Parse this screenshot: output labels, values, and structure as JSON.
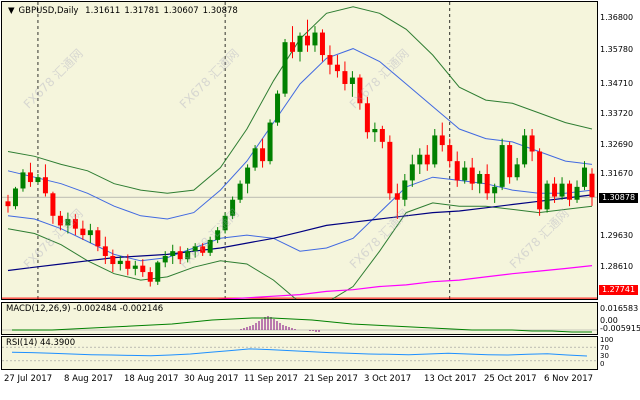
{
  "header": {
    "symbol": "GBPUSD,Daily",
    "open": "1.31611",
    "high": "1.31781",
    "low": "1.30607",
    "close": "1.30878"
  },
  "price_axis": {
    "ticks": [
      "1.36800",
      "1.35780",
      "1.34710",
      "1.33720",
      "1.32690",
      "1.31670",
      "1.29630",
      "1.28610",
      "1.27740"
    ],
    "current_price": "1.30878",
    "level_price": "1.27741"
  },
  "macd": {
    "label": "MACD(12,26,9) -0.002484 -0.002146",
    "ticks": [
      "0.016583",
      "0.00",
      "-0.005915"
    ]
  },
  "rsi": {
    "label": "RSI(14) 44.3900",
    "ticks": [
      "100",
      "70",
      "30",
      "0"
    ]
  },
  "date_axis": [
    "27 Jul 2017",
    "8 Aug 2017",
    "18 Aug 2017",
    "30 Aug 2017",
    "11 Sep 2017",
    "21 Sep 2017",
    "3 Oct 2017",
    "13 Oct 2017",
    "25 Oct 2017",
    "6 Nov 2017"
  ],
  "watermark": "FX678 汇通网",
  "colors": {
    "background": "#f5f5dc",
    "bull_candle": "#008000",
    "bear_candle": "#ff0000",
    "bollinger_outer": "#2e7d32",
    "bollinger_inner": "#4169e1",
    "ma_long": "#ff00ff",
    "ma_mid": "#000080",
    "level_line": "#ff0000"
  },
  "chart_data": {
    "type": "candlestick",
    "title": "GBPUSD,Daily",
    "ylim": [
      1.2765,
      1.3695
    ],
    "candles": [
      {
        "o": 1.3075,
        "h": 1.3095,
        "l": 1.304,
        "c": 1.306
      },
      {
        "o": 1.306,
        "h": 1.312,
        "l": 1.305,
        "c": 1.3115
      },
      {
        "o": 1.3115,
        "h": 1.3175,
        "l": 1.3105,
        "c": 1.3165
      },
      {
        "o": 1.3165,
        "h": 1.3195,
        "l": 1.312,
        "c": 1.3135
      },
      {
        "o": 1.3135,
        "h": 1.316,
        "l": 1.313,
        "c": 1.315
      },
      {
        "o": 1.315,
        "h": 1.319,
        "l": 1.309,
        "c": 1.31
      },
      {
        "o": 1.31,
        "h": 1.3105,
        "l": 1.3005,
        "c": 1.303
      },
      {
        "o": 1.303,
        "h": 1.3045,
        "l": 1.2985,
        "c": 1.3
      },
      {
        "o": 1.3,
        "h": 1.304,
        "l": 1.2975,
        "c": 1.302
      },
      {
        "o": 1.302,
        "h": 1.3035,
        "l": 1.297,
        "c": 1.299
      },
      {
        "o": 1.299,
        "h": 1.3015,
        "l": 1.2955,
        "c": 1.297
      },
      {
        "o": 1.297,
        "h": 1.3005,
        "l": 1.2945,
        "c": 1.2985
      },
      {
        "o": 1.2985,
        "h": 1.2995,
        "l": 1.292,
        "c": 1.2935
      },
      {
        "o": 1.2935,
        "h": 1.2965,
        "l": 1.288,
        "c": 1.2905
      },
      {
        "o": 1.2905,
        "h": 1.2925,
        "l": 1.2855,
        "c": 1.288
      },
      {
        "o": 1.288,
        "h": 1.2905,
        "l": 1.286,
        "c": 1.289
      },
      {
        "o": 1.289,
        "h": 1.291,
        "l": 1.2845,
        "c": 1.2865
      },
      {
        "o": 1.2865,
        "h": 1.289,
        "l": 1.2845,
        "c": 1.2875
      },
      {
        "o": 1.2875,
        "h": 1.2895,
        "l": 1.284,
        "c": 1.2855
      },
      {
        "o": 1.2855,
        "h": 1.287,
        "l": 1.281,
        "c": 1.2825
      },
      {
        "o": 1.2825,
        "h": 1.289,
        "l": 1.2815,
        "c": 1.2885
      },
      {
        "o": 1.2885,
        "h": 1.292,
        "l": 1.287,
        "c": 1.2905
      },
      {
        "o": 1.2905,
        "h": 1.294,
        "l": 1.288,
        "c": 1.292
      },
      {
        "o": 1.292,
        "h": 1.2935,
        "l": 1.288,
        "c": 1.2895
      },
      {
        "o": 1.2895,
        "h": 1.293,
        "l": 1.2885,
        "c": 1.292
      },
      {
        "o": 1.292,
        "h": 1.2945,
        "l": 1.29,
        "c": 1.2935
      },
      {
        "o": 1.2935,
        "h": 1.2945,
        "l": 1.2905,
        "c": 1.2915
      },
      {
        "o": 1.2915,
        "h": 1.2965,
        "l": 1.2905,
        "c": 1.2955
      },
      {
        "o": 1.2955,
        "h": 1.2995,
        "l": 1.2945,
        "c": 1.2985
      },
      {
        "o": 1.2985,
        "h": 1.304,
        "l": 1.2975,
        "c": 1.303
      },
      {
        "o": 1.303,
        "h": 1.309,
        "l": 1.302,
        "c": 1.308
      },
      {
        "o": 1.308,
        "h": 1.314,
        "l": 1.307,
        "c": 1.313
      },
      {
        "o": 1.313,
        "h": 1.319,
        "l": 1.31,
        "c": 1.318
      },
      {
        "o": 1.318,
        "h": 1.325,
        "l": 1.317,
        "c": 1.324
      },
      {
        "o": 1.324,
        "h": 1.327,
        "l": 1.318,
        "c": 1.32
      },
      {
        "o": 1.32,
        "h": 1.333,
        "l": 1.319,
        "c": 1.332
      },
      {
        "o": 1.332,
        "h": 1.342,
        "l": 1.331,
        "c": 1.341
      },
      {
        "o": 1.341,
        "h": 1.358,
        "l": 1.34,
        "c": 1.357
      },
      {
        "o": 1.357,
        "h": 1.362,
        "l": 1.352,
        "c": 1.354
      },
      {
        "o": 1.354,
        "h": 1.36,
        "l": 1.351,
        "c": 1.359
      },
      {
        "o": 1.359,
        "h": 1.364,
        "l": 1.354,
        "c": 1.356
      },
      {
        "o": 1.356,
        "h": 1.362,
        "l": 1.354,
        "c": 1.36
      },
      {
        "o": 1.36,
        "h": 1.361,
        "l": 1.351,
        "c": 1.353
      },
      {
        "o": 1.353,
        "h": 1.356,
        "l": 1.347,
        "c": 1.35
      },
      {
        "o": 1.35,
        "h": 1.353,
        "l": 1.346,
        "c": 1.348
      },
      {
        "o": 1.348,
        "h": 1.351,
        "l": 1.342,
        "c": 1.344
      },
      {
        "o": 1.344,
        "h": 1.348,
        "l": 1.34,
        "c": 1.346
      },
      {
        "o": 1.346,
        "h": 1.347,
        "l": 1.336,
        "c": 1.338
      },
      {
        "o": 1.338,
        "h": 1.34,
        "l": 1.327,
        "c": 1.329
      },
      {
        "o": 1.329,
        "h": 1.332,
        "l": 1.326,
        "c": 1.33
      },
      {
        "o": 1.33,
        "h": 1.331,
        "l": 1.324,
        "c": 1.326
      },
      {
        "o": 1.326,
        "h": 1.328,
        "l": 1.308,
        "c": 1.31
      },
      {
        "o": 1.31,
        "h": 1.313,
        "l": 1.302,
        "c": 1.308
      },
      {
        "o": 1.308,
        "h": 1.316,
        "l": 1.306,
        "c": 1.314
      },
      {
        "o": 1.314,
        "h": 1.322,
        "l": 1.312,
        "c": 1.319
      },
      {
        "o": 1.319,
        "h": 1.324,
        "l": 1.316,
        "c": 1.322
      },
      {
        "o": 1.322,
        "h": 1.325,
        "l": 1.317,
        "c": 1.319
      },
      {
        "o": 1.319,
        "h": 1.33,
        "l": 1.318,
        "c": 1.328
      },
      {
        "o": 1.328,
        "h": 1.332,
        "l": 1.323,
        "c": 1.325
      },
      {
        "o": 1.325,
        "h": 1.327,
        "l": 1.318,
        "c": 1.32
      },
      {
        "o": 1.32,
        "h": 1.323,
        "l": 1.312,
        "c": 1.314
      },
      {
        "o": 1.314,
        "h": 1.32,
        "l": 1.313,
        "c": 1.318
      },
      {
        "o": 1.318,
        "h": 1.321,
        "l": 1.311,
        "c": 1.313
      },
      {
        "o": 1.313,
        "h": 1.317,
        "l": 1.31,
        "c": 1.316
      },
      {
        "o": 1.316,
        "h": 1.319,
        "l": 1.308,
        "c": 1.31
      },
      {
        "o": 1.31,
        "h": 1.313,
        "l": 1.307,
        "c": 1.312
      },
      {
        "o": 1.312,
        "h": 1.327,
        "l": 1.311,
        "c": 1.325
      },
      {
        "o": 1.325,
        "h": 1.326,
        "l": 1.313,
        "c": 1.315
      },
      {
        "o": 1.315,
        "h": 1.321,
        "l": 1.314,
        "c": 1.319
      },
      {
        "o": 1.319,
        "h": 1.33,
        "l": 1.318,
        "c": 1.328
      },
      {
        "o": 1.328,
        "h": 1.33,
        "l": 1.32,
        "c": 1.323
      },
      {
        "o": 1.323,
        "h": 1.324,
        "l": 1.303,
        "c": 1.305
      },
      {
        "o": 1.305,
        "h": 1.314,
        "l": 1.304,
        "c": 1.313
      },
      {
        "o": 1.313,
        "h": 1.315,
        "l": 1.307,
        "c": 1.309
      },
      {
        "o": 1.309,
        "h": 1.315,
        "l": 1.308,
        "c": 1.313
      },
      {
        "o": 1.313,
        "h": 1.314,
        "l": 1.306,
        "c": 1.308
      },
      {
        "o": 1.308,
        "h": 1.314,
        "l": 1.307,
        "c": 1.312
      },
      {
        "o": 1.312,
        "h": 1.32,
        "l": 1.311,
        "c": 1.318
      },
      {
        "o": 1.3161,
        "h": 1.3178,
        "l": 1.3061,
        "c": 1.3088
      }
    ],
    "bollinger_outer_upper": [
      1.323,
      1.3215,
      1.319,
      1.317,
      1.313,
      1.311,
      1.31,
      1.311,
      1.318,
      1.33,
      1.345,
      1.358,
      1.366,
      1.368,
      1.366,
      1.361,
      1.353,
      1.343,
      1.339,
      1.338,
      1.335,
      1.332,
      1.33
    ],
    "bollinger_outer_lower": [
      1.299,
      1.2975,
      1.294,
      1.289,
      1.285,
      1.283,
      1.284,
      1.287,
      1.289,
      1.288,
      1.283,
      1.276,
      1.276,
      1.281,
      1.292,
      1.304,
      1.307,
      1.306,
      1.306,
      1.305,
      1.304,
      1.305,
      1.306
    ],
    "bollinger_inner_upper": [
      1.317,
      1.315,
      1.313,
      1.31,
      1.306,
      1.303,
      1.302,
      1.304,
      1.311,
      1.32,
      1.332,
      1.344,
      1.352,
      1.355,
      1.351,
      1.344,
      1.337,
      1.33,
      1.327,
      1.326,
      1.323,
      1.32,
      1.319
    ],
    "bollinger_inner_lower": [
      1.303,
      1.302,
      1.299,
      1.295,
      1.291,
      1.289,
      1.29,
      1.293,
      1.296,
      1.297,
      1.296,
      1.292,
      1.293,
      1.296,
      1.304,
      1.312,
      1.315,
      1.314,
      1.313,
      1.311,
      1.31,
      1.31,
      1.311
    ],
    "ma_mid": [
      1.286,
      1.287,
      1.288,
      1.289,
      1.29,
      1.2905,
      1.291,
      1.292,
      1.293,
      1.2945,
      1.296,
      1.298,
      1.3,
      1.301,
      1.302,
      1.303,
      1.304,
      1.3045,
      1.3055,
      1.3065,
      1.3075,
      1.3085,
      1.3095
    ],
    "ma_long": [
      1.273,
      1.2735,
      1.274,
      1.2745,
      1.275,
      1.2755,
      1.276,
      1.2765,
      1.277,
      1.2775,
      1.278,
      1.2785,
      1.2795,
      1.28,
      1.281,
      1.2815,
      1.2825,
      1.283,
      1.284,
      1.285,
      1.2858,
      1.2866,
      1.2875
    ],
    "macd_histogram": [
      0.0,
      0.0,
      0.0,
      0.001,
      0.002,
      0.003,
      0.004,
      0.005,
      0.007,
      0.009,
      0.011,
      0.013,
      0.014,
      0.013,
      0.011,
      0.009,
      0.007,
      0.005,
      0.004,
      0.003,
      0.002,
      0.001,
      0.0,
      0.0,
      0.0,
      0.0,
      -0.001,
      -0.001,
      -0.002,
      -0.002
    ],
    "macd_signal": [
      0.0,
      0.0,
      0.0,
      0.001,
      0.002,
      0.003,
      0.004,
      0.005,
      0.006,
      0.008,
      0.01,
      0.011,
      0.012,
      0.012,
      0.011,
      0.01,
      0.008,
      0.006,
      0.005,
      0.004,
      0.003,
      0.002,
      0.001,
      0.0,
      0.0,
      0.0,
      -0.001,
      -0.001,
      -0.002,
      -0.002
    ],
    "rsi_values": [
      55,
      54,
      52,
      50,
      48,
      47,
      46,
      45,
      47,
      50,
      55,
      60,
      65,
      63,
      60,
      57,
      54,
      52,
      50,
      49,
      48,
      50,
      52,
      50,
      48,
      47,
      49,
      51,
      47,
      44
    ]
  }
}
